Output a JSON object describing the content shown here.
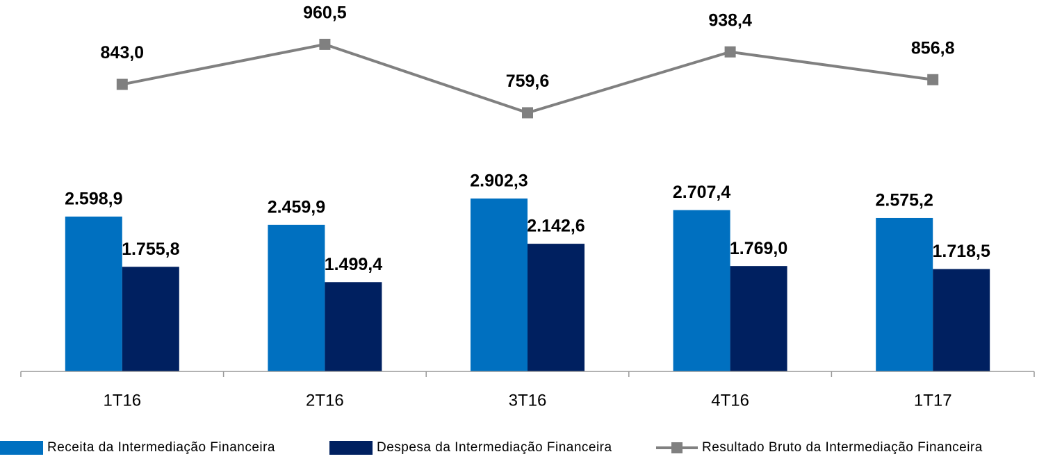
{
  "chart_data": {
    "type": "bar",
    "categories": [
      "1T16",
      "2T16",
      "3T16",
      "4T16",
      "1T17"
    ],
    "ylim": [
      0,
      6000
    ],
    "y2lim": [
      0,
      1050
    ],
    "legend": "bottom",
    "series": [
      {
        "name": "Receita da Intermediação Financeira",
        "color": "#0070c0",
        "type": "bar",
        "values": [
          2598.9,
          2459.9,
          2902.3,
          2707.4,
          2575.2
        ],
        "value_labels": [
          "2.598,9",
          "2.459,9",
          "2.902,3",
          "2.707,4",
          "2.575,2"
        ]
      },
      {
        "name": "Despesa da Intermediação Financeira",
        "color": "#002060",
        "type": "bar",
        "values": [
          1755.8,
          1499.4,
          2142.6,
          1769.0,
          1718.5
        ],
        "value_labels": [
          "1.755,8",
          "1.499,4",
          "2.142,6",
          "1.769,0",
          "1.718,5"
        ]
      },
      {
        "name": "Resultado Bruto da Intermediação Financeira",
        "color": "#808080",
        "type": "line",
        "axis": "y2",
        "values": [
          843.0,
          960.5,
          759.6,
          938.4,
          856.8
        ],
        "value_labels": [
          "843,0",
          "960,5",
          "759,6",
          "938,4",
          "856,8"
        ]
      }
    ]
  }
}
